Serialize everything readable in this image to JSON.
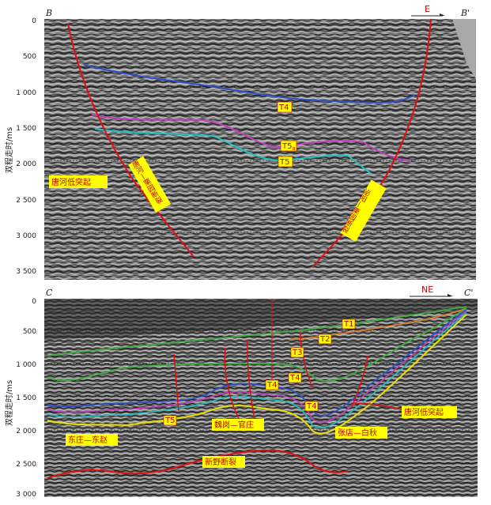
{
  "panels": [
    {
      "id": "B",
      "corner_left": "B",
      "corner_right": "B'",
      "direction": "E",
      "y_axis_label": "双程走时/ms",
      "y_ticks": [
        "0",
        "500",
        "1 000",
        "1 500",
        "2 000",
        "2 500",
        "3 000",
        "3 500"
      ],
      "horizon_labels": [
        "T4",
        "T5",
        "T5"
      ],
      "horizon_subscript": "a",
      "structure_labels": [
        "唐河低突起"
      ],
      "fault_labels": [
        "唐河—栗园断裂",
        "泌阳—栗园断裂"
      ]
    },
    {
      "id": "C",
      "corner_left": "C",
      "corner_right": "C'",
      "direction": "NE",
      "y_axis_label": "双程走时/ms",
      "y_ticks": [
        "0",
        "500",
        "1 000",
        "1 500",
        "2 000",
        "2 500",
        "3 000"
      ],
      "horizon_labels": [
        "T1",
        "T2",
        "T3",
        "T4",
        "T4",
        "T4",
        "T5"
      ],
      "structure_labels": [
        "东庄—东赵",
        "魏岗—官庄",
        "张店—白秋",
        "唐河低突起"
      ],
      "fault_labels": [
        "新野断裂"
      ]
    }
  ],
  "colors": {
    "seismic_bg": "#6f6f6f",
    "fault": "#e01010",
    "label_box": "#ffff00",
    "label_text": "#c00000",
    "T1": "#3fae3f",
    "T2": "#e08020",
    "T3": "#3fae3f",
    "T4_blue": "#3050c8",
    "T4_yellow": "#e8e000",
    "T5_magenta": "#c040c0",
    "T5_cyan": "#20c0c0"
  }
}
